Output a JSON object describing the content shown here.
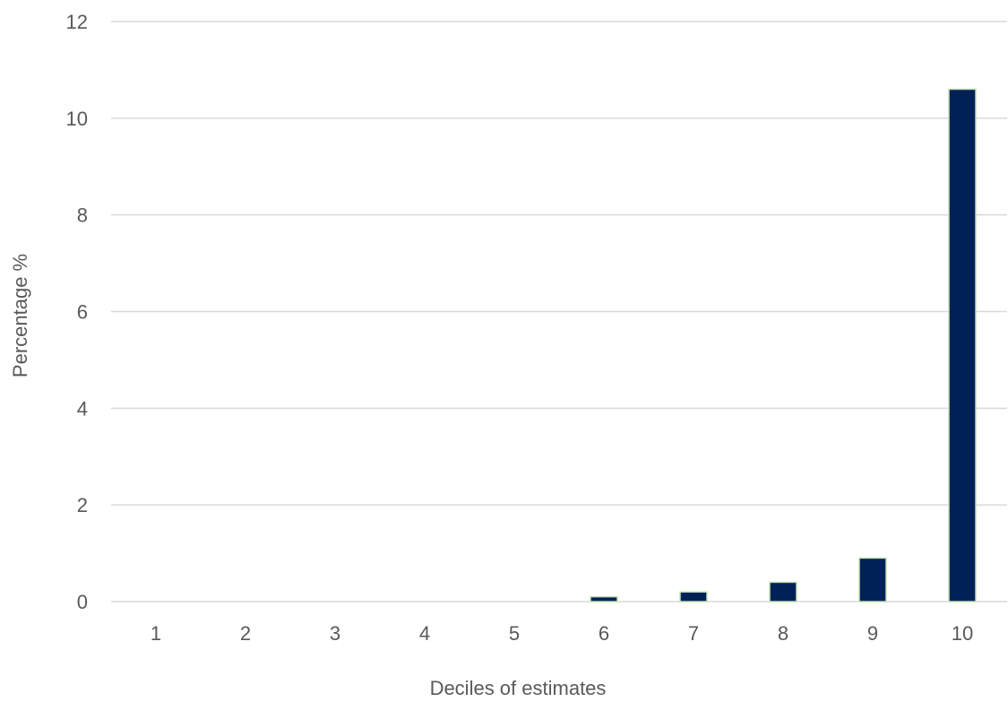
{
  "chart_data": {
    "type": "bar",
    "title": "",
    "xlabel": "Deciles of estimates",
    "ylabel": "Percentage %",
    "categories": [
      "1",
      "2",
      "3",
      "4",
      "5",
      "6",
      "7",
      "8",
      "9",
      "10"
    ],
    "values": [
      0,
      0,
      0,
      0,
      0,
      0.1,
      0.2,
      0.4,
      0.9,
      10.6
    ],
    "ylim": [
      0,
      12
    ],
    "yticks": [
      "0",
      "2",
      "4",
      "6",
      "8",
      "10",
      "12"
    ],
    "grid": true,
    "legend": "none",
    "colors": {
      "bar_fill": "#002157",
      "bar_outline": "#c6e0b4",
      "grid": "#d9d9d9",
      "text": "#595959"
    }
  }
}
